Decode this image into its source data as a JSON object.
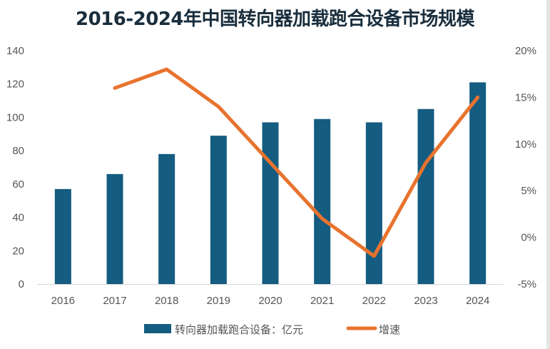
{
  "chart_data": {
    "type": "bar",
    "title": "2016-2024年中国转向器加载跑合设备市场规模",
    "categories": [
      "2016",
      "2017",
      "2018",
      "2019",
      "2020",
      "2021",
      "2022",
      "2023",
      "2024"
    ],
    "series": [
      {
        "name": "转向器加载跑合设备：亿元",
        "type": "bar",
        "axis": "left",
        "values": [
          57,
          66,
          78,
          89,
          97,
          99,
          97,
          105,
          121
        ]
      },
      {
        "name": "增速",
        "type": "line",
        "axis": "right",
        "values": [
          null,
          16,
          18,
          14,
          8,
          2,
          -2,
          8,
          15
        ]
      }
    ],
    "y_left": {
      "lim": [
        0,
        140
      ],
      "ticks": [
        "0",
        "20",
        "40",
        "60",
        "80",
        "100",
        "120",
        "140"
      ]
    },
    "y_right": {
      "lim": [
        -5,
        20
      ],
      "ticks": [
        "-5%",
        "0%",
        "5%",
        "10%",
        "15%",
        "20%"
      ]
    },
    "colors": {
      "bar": "#145c80",
      "line": "#e8732e"
    },
    "grid": false,
    "legend_position": "bottom"
  }
}
